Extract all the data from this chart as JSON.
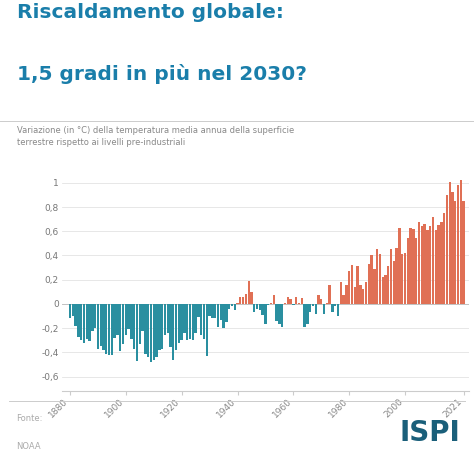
{
  "title_line1": "Riscaldamento globale:",
  "title_line2": "1,5 gradi in più nel 2030?",
  "subtitle": "Variazione (in °C) della temperatura media annua della superficie\nterrestre rispetto ai livelli pre-industriali",
  "source_line1": "Fonte:",
  "source_line2": "NOAA",
  "ispi_text": "ISPI",
  "background_color": "#ffffff",
  "title_color": "#1a7eaa",
  "subtitle_color": "#888888",
  "source_color": "#aaaaaa",
  "ispi_color": "#1a5f7a",
  "bar_color_negative": "#2a8fa0",
  "bar_color_positive": "#e07055",
  "grid_color": "#dddddd",
  "spine_color": "#cccccc",
  "ytick_labels": [
    "1",
    "0,8",
    "0,6",
    "0,4",
    "0,2",
    "0",
    "-0,2",
    "-0,4",
    "-0,6"
  ],
  "ytick_values": [
    1.0,
    0.8,
    0.6,
    0.4,
    0.2,
    0.0,
    -0.2,
    -0.4,
    -0.6
  ],
  "xtick_labels": [
    "1880",
    "1900",
    "1920",
    "1940",
    "1960",
    "1980",
    "2000",
    "2021"
  ],
  "xtick_values": [
    1880,
    1900,
    1920,
    1940,
    1960,
    1980,
    2000,
    2021
  ],
  "ylim": [
    -0.72,
    1.12
  ],
  "xlim": [
    1877,
    2023
  ],
  "years": [
    1880,
    1881,
    1882,
    1883,
    1884,
    1885,
    1886,
    1887,
    1888,
    1889,
    1890,
    1891,
    1892,
    1893,
    1894,
    1895,
    1896,
    1897,
    1898,
    1899,
    1900,
    1901,
    1902,
    1903,
    1904,
    1905,
    1906,
    1907,
    1908,
    1909,
    1910,
    1911,
    1912,
    1913,
    1914,
    1915,
    1916,
    1917,
    1918,
    1919,
    1920,
    1921,
    1922,
    1923,
    1924,
    1925,
    1926,
    1927,
    1928,
    1929,
    1930,
    1931,
    1932,
    1933,
    1934,
    1935,
    1936,
    1937,
    1938,
    1939,
    1940,
    1941,
    1942,
    1943,
    1944,
    1945,
    1946,
    1947,
    1948,
    1949,
    1950,
    1951,
    1952,
    1953,
    1954,
    1955,
    1956,
    1957,
    1958,
    1959,
    1960,
    1961,
    1962,
    1963,
    1964,
    1965,
    1966,
    1967,
    1968,
    1969,
    1970,
    1971,
    1972,
    1973,
    1974,
    1975,
    1976,
    1977,
    1978,
    1979,
    1980,
    1981,
    1982,
    1983,
    1984,
    1985,
    1986,
    1987,
    1988,
    1989,
    1990,
    1991,
    1992,
    1993,
    1994,
    1995,
    1996,
    1997,
    1998,
    1999,
    2000,
    2001,
    2002,
    2003,
    2004,
    2005,
    2006,
    2007,
    2008,
    2009,
    2010,
    2011,
    2012,
    2013,
    2014,
    2015,
    2016,
    2017,
    2018,
    2019,
    2020,
    2021
  ],
  "anomalies": [
    -0.12,
    -0.1,
    -0.18,
    -0.27,
    -0.3,
    -0.32,
    -0.29,
    -0.31,
    -0.22,
    -0.2,
    -0.37,
    -0.35,
    -0.38,
    -0.41,
    -0.42,
    -0.42,
    -0.28,
    -0.26,
    -0.39,
    -0.33,
    -0.26,
    -0.21,
    -0.29,
    -0.37,
    -0.47,
    -0.33,
    -0.22,
    -0.41,
    -0.44,
    -0.48,
    -0.46,
    -0.44,
    -0.38,
    -0.37,
    -0.26,
    -0.24,
    -0.36,
    -0.46,
    -0.38,
    -0.32,
    -0.3,
    -0.24,
    -0.3,
    -0.29,
    -0.3,
    -0.24,
    -0.11,
    -0.26,
    -0.29,
    -0.43,
    -0.1,
    -0.12,
    -0.12,
    -0.19,
    -0.13,
    -0.2,
    -0.15,
    -0.04,
    -0.02,
    -0.05,
    0.01,
    0.06,
    0.06,
    0.08,
    0.19,
    0.1,
    -0.07,
    -0.04,
    -0.05,
    -0.09,
    -0.17,
    -0.01,
    0.01,
    0.07,
    -0.14,
    -0.17,
    -0.19,
    0.01,
    0.06,
    0.04,
    -0.01,
    0.06,
    0.01,
    0.05,
    -0.19,
    -0.17,
    -0.07,
    -0.02,
    -0.08,
    0.07,
    0.04,
    -0.08,
    0.01,
    0.16,
    -0.07,
    -0.02,
    -0.1,
    0.18,
    0.07,
    0.16,
    0.27,
    0.32,
    0.14,
    0.31,
    0.16,
    0.12,
    0.18,
    0.33,
    0.4,
    0.29,
    0.45,
    0.41,
    0.22,
    0.24,
    0.31,
    0.45,
    0.35,
    0.46,
    0.63,
    0.41,
    0.42,
    0.54,
    0.63,
    0.62,
    0.54,
    0.68,
    0.64,
    0.66,
    0.61,
    0.64,
    0.72,
    0.61,
    0.65,
    0.68,
    0.75,
    0.9,
    1.01,
    0.92,
    0.85,
    0.98,
    1.02,
    0.85
  ]
}
